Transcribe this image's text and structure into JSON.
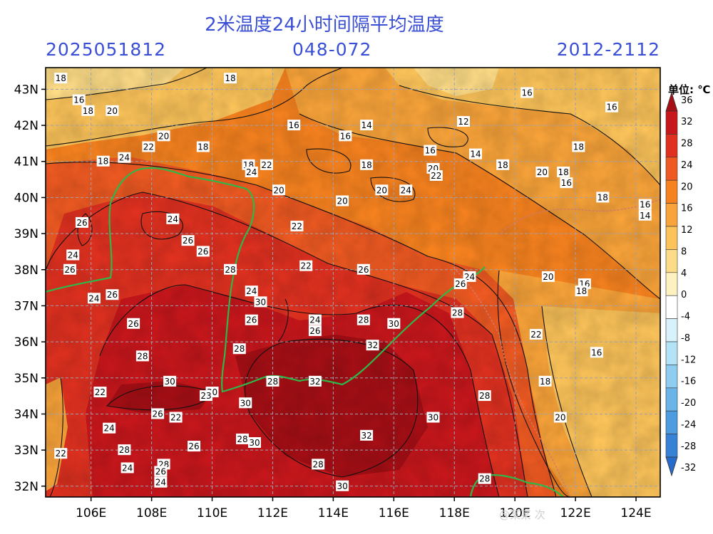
{
  "header": {
    "title": "2米温度24小时间隔平均温度",
    "init_time": "2025051812",
    "forecast_range": "048-072",
    "valid_time": "2012-2112"
  },
  "axes": {
    "lat_labels": [
      "43N",
      "42N",
      "41N",
      "40N",
      "39N",
      "38N",
      "37N",
      "36N",
      "35N",
      "34N",
      "33N",
      "32N"
    ],
    "lat_values": [
      43,
      42,
      41,
      40,
      39,
      38,
      37,
      36,
      35,
      34,
      33,
      32
    ],
    "lon_labels": [
      "106E",
      "108E",
      "110E",
      "112E",
      "114E",
      "116E",
      "118E",
      "120E",
      "122E",
      "124E"
    ],
    "lon_values": [
      106,
      108,
      110,
      112,
      114,
      116,
      118,
      120,
      122,
      124
    ],
    "lon_range": [
      104.5,
      124.8
    ],
    "lat_range": [
      31.7,
      43.6
    ]
  },
  "colorbar": {
    "unit_label": "单位: ℃",
    "levels": [
      "36",
      "32",
      "28",
      "24",
      "20",
      "16",
      "12",
      "8",
      "4",
      "0",
      "-4",
      "-8",
      "-12",
      "-16",
      "-20",
      "-24",
      "-28",
      "-32"
    ],
    "colors": [
      "#a50f15",
      "#c8171c",
      "#e03120",
      "#ef5a22",
      "#f6821f",
      "#f9a43a",
      "#fbc35a",
      "#fddc87",
      "#fdf1bf",
      "#ffffff",
      "#d8f2fb",
      "#b4e2f6",
      "#8fcdf0",
      "#6ab4e8",
      "#4d9be0",
      "#3782d6",
      "#276bcb"
    ]
  },
  "contour_labels": [
    {
      "v": "18",
      "lon": 105.0,
      "lat": 43.3
    },
    {
      "v": "18",
      "lon": 110.6,
      "lat": 43.3
    },
    {
      "v": "16",
      "lon": 105.6,
      "lat": 42.7
    },
    {
      "v": "18",
      "lon": 105.9,
      "lat": 42.4
    },
    {
      "v": "20",
      "lon": 106.7,
      "lat": 42.4
    },
    {
      "v": "16",
      "lon": 120.4,
      "lat": 42.9
    },
    {
      "v": "16",
      "lon": 123.2,
      "lat": 42.5
    },
    {
      "v": "16",
      "lon": 112.7,
      "lat": 42.0
    },
    {
      "v": "14",
      "lon": 115.1,
      "lat": 42.0
    },
    {
      "v": "16",
      "lon": 114.4,
      "lat": 41.7
    },
    {
      "v": "12",
      "lon": 118.3,
      "lat": 42.1
    },
    {
      "v": "20",
      "lon": 108.4,
      "lat": 41.7
    },
    {
      "v": "18",
      "lon": 109.7,
      "lat": 41.4
    },
    {
      "v": "22",
      "lon": 107.9,
      "lat": 41.4
    },
    {
      "v": "18",
      "lon": 106.4,
      "lat": 41.0
    },
    {
      "v": "24",
      "lon": 107.1,
      "lat": 41.1
    },
    {
      "v": "16",
      "lon": 117.2,
      "lat": 41.3
    },
    {
      "v": "14",
      "lon": 118.7,
      "lat": 41.2
    },
    {
      "v": "18",
      "lon": 122.1,
      "lat": 41.4
    },
    {
      "v": "18",
      "lon": 115.1,
      "lat": 40.9
    },
    {
      "v": "20",
      "lon": 117.3,
      "lat": 40.8
    },
    {
      "v": "18",
      "lon": 119.6,
      "lat": 40.9
    },
    {
      "v": "18",
      "lon": 111.2,
      "lat": 40.9
    },
    {
      "v": "22",
      "lon": 111.8,
      "lat": 40.9
    },
    {
      "v": "24",
      "lon": 111.3,
      "lat": 40.7
    },
    {
      "v": "22",
      "lon": 117.4,
      "lat": 40.6
    },
    {
      "v": "20",
      "lon": 120.9,
      "lat": 40.7
    },
    {
      "v": "18",
      "lon": 121.6,
      "lat": 40.7
    },
    {
      "v": "16",
      "lon": 121.7,
      "lat": 40.4
    },
    {
      "v": "20",
      "lon": 112.2,
      "lat": 40.2
    },
    {
      "v": "20",
      "lon": 115.6,
      "lat": 40.2
    },
    {
      "v": "24",
      "lon": 116.4,
      "lat": 40.2
    },
    {
      "v": "18",
      "lon": 122.9,
      "lat": 40.0
    },
    {
      "v": "20",
      "lon": 114.3,
      "lat": 39.9
    },
    {
      "v": "16",
      "lon": 124.3,
      "lat": 39.8
    },
    {
      "v": "14",
      "lon": 124.3,
      "lat": 39.5
    },
    {
      "v": "24",
      "lon": 108.7,
      "lat": 39.4
    },
    {
      "v": "22",
      "lon": 112.8,
      "lat": 39.2
    },
    {
      "v": "26",
      "lon": 105.7,
      "lat": 39.3
    },
    {
      "v": "26",
      "lon": 109.2,
      "lat": 38.8
    },
    {
      "v": "26",
      "lon": 109.7,
      "lat": 38.5
    },
    {
      "v": "24",
      "lon": 105.4,
      "lat": 38.4
    },
    {
      "v": "26",
      "lon": 105.3,
      "lat": 38.0
    },
    {
      "v": "28",
      "lon": 110.6,
      "lat": 38.0
    },
    {
      "v": "22",
      "lon": 113.1,
      "lat": 38.1
    },
    {
      "v": "26",
      "lon": 115.0,
      "lat": 38.0
    },
    {
      "v": "24",
      "lon": 118.5,
      "lat": 37.8
    },
    {
      "v": "26",
      "lon": 118.2,
      "lat": 37.6
    },
    {
      "v": "20",
      "lon": 121.1,
      "lat": 37.8
    },
    {
      "v": "16",
      "lon": 122.3,
      "lat": 37.6
    },
    {
      "v": "18",
      "lon": 122.2,
      "lat": 37.4
    },
    {
      "v": "24",
      "lon": 106.1,
      "lat": 37.2
    },
    {
      "v": "26",
      "lon": 106.7,
      "lat": 37.3
    },
    {
      "v": "24",
      "lon": 111.3,
      "lat": 37.4
    },
    {
      "v": "30",
      "lon": 111.6,
      "lat": 37.1
    },
    {
      "v": "28",
      "lon": 118.1,
      "lat": 36.8
    },
    {
      "v": "24",
      "lon": 113.4,
      "lat": 36.6
    },
    {
      "v": "26",
      "lon": 111.3,
      "lat": 36.6
    },
    {
      "v": "28",
      "lon": 115.0,
      "lat": 36.6
    },
    {
      "v": "30",
      "lon": 116.0,
      "lat": 36.5
    },
    {
      "v": "26",
      "lon": 107.4,
      "lat": 36.5
    },
    {
      "v": "26",
      "lon": 113.4,
      "lat": 36.3
    },
    {
      "v": "22",
      "lon": 120.7,
      "lat": 36.2
    },
    {
      "v": "16",
      "lon": 122.7,
      "lat": 35.7
    },
    {
      "v": "32",
      "lon": 115.3,
      "lat": 35.9
    },
    {
      "v": "28",
      "lon": 110.9,
      "lat": 35.8
    },
    {
      "v": "28",
      "lon": 107.7,
      "lat": 35.6
    },
    {
      "v": "18",
      "lon": 121.0,
      "lat": 34.9
    },
    {
      "v": "30",
      "lon": 108.6,
      "lat": 34.9
    },
    {
      "v": "28",
      "lon": 112.0,
      "lat": 34.9
    },
    {
      "v": "32",
      "lon": 113.4,
      "lat": 34.9
    },
    {
      "v": "22",
      "lon": 106.3,
      "lat": 34.6
    },
    {
      "v": "30",
      "lon": 110.0,
      "lat": 34.6
    },
    {
      "v": "23",
      "lon": 109.8,
      "lat": 34.5
    },
    {
      "v": "28",
      "lon": 119.0,
      "lat": 34.5
    },
    {
      "v": "30",
      "lon": 111.1,
      "lat": 34.3
    },
    {
      "v": "26",
      "lon": 108.2,
      "lat": 34.0
    },
    {
      "v": "22",
      "lon": 108.8,
      "lat": 33.9
    },
    {
      "v": "20",
      "lon": 121.5,
      "lat": 33.9
    },
    {
      "v": "30",
      "lon": 117.3,
      "lat": 33.9
    },
    {
      "v": "24",
      "lon": 106.6,
      "lat": 33.6
    },
    {
      "v": "32",
      "lon": 115.1,
      "lat": 33.4
    },
    {
      "v": "28",
      "lon": 111.0,
      "lat": 33.3
    },
    {
      "v": "30",
      "lon": 111.4,
      "lat": 33.2
    },
    {
      "v": "26",
      "lon": 109.4,
      "lat": 33.1
    },
    {
      "v": "28",
      "lon": 107.1,
      "lat": 33.0
    },
    {
      "v": "22",
      "lon": 105.0,
      "lat": 32.9
    },
    {
      "v": "28",
      "lon": 108.4,
      "lat": 32.6
    },
    {
      "v": "26",
      "lon": 108.3,
      "lat": 32.4
    },
    {
      "v": "24",
      "lon": 107.2,
      "lat": 32.5
    },
    {
      "v": "28",
      "lon": 113.5,
      "lat": 32.6
    },
    {
      "v": "28",
      "lon": 119.0,
      "lat": 32.2
    },
    {
      "v": "24",
      "lon": 108.3,
      "lat": 32.1
    },
    {
      "v": "30",
      "lon": 114.3,
      "lat": 32.0
    }
  ],
  "watermark": "@某某 次"
}
